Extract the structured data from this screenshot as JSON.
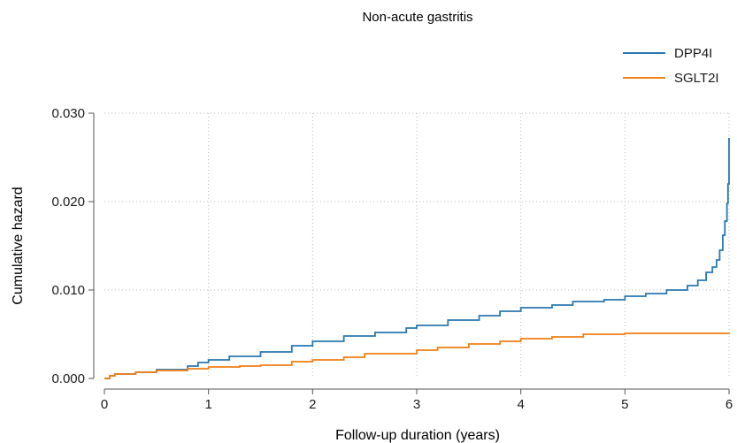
{
  "chart_data": {
    "type": "line",
    "title": "Non-acute gastritis",
    "xlabel": "Follow-up duration (years)",
    "ylabel": "Cumulative hazard",
    "xlim": [
      0,
      6
    ],
    "ylim": [
      0,
      0.03
    ],
    "x_ticks": [
      0,
      1,
      2,
      3,
      4,
      5,
      6
    ],
    "x_tick_labels": [
      "0",
      "1",
      "2",
      "3",
      "4",
      "5",
      "6"
    ],
    "y_ticks": [
      0,
      0.01,
      0.02,
      0.03
    ],
    "y_tick_labels": [
      "0.000",
      "0.010",
      "0.020",
      "0.030"
    ],
    "grid": true,
    "legend_position": "top-right",
    "series": [
      {
        "name": "DPP4I",
        "color": "#2a78b0",
        "x": [
          0,
          0.05,
          0.1,
          0.3,
          0.5,
          0.8,
          0.9,
          1.0,
          1.2,
          1.5,
          1.8,
          2.0,
          2.3,
          2.6,
          2.9,
          3.0,
          3.3,
          3.6,
          3.8,
          4.0,
          4.3,
          4.5,
          4.8,
          5.0,
          5.2,
          5.4,
          5.6,
          5.7,
          5.78,
          5.84,
          5.88,
          5.91,
          5.94,
          5.96,
          5.98,
          5.99,
          6.0
        ],
        "y": [
          0,
          0.0003,
          0.0005,
          0.0007,
          0.001,
          0.0014,
          0.0018,
          0.0021,
          0.0025,
          0.003,
          0.0037,
          0.0042,
          0.0048,
          0.0052,
          0.0057,
          0.006,
          0.0066,
          0.0071,
          0.0076,
          0.008,
          0.0083,
          0.0087,
          0.0089,
          0.0093,
          0.0096,
          0.01,
          0.0105,
          0.0111,
          0.012,
          0.0126,
          0.0134,
          0.0145,
          0.0162,
          0.0178,
          0.0198,
          0.022,
          0.0272
        ]
      },
      {
        "name": "SGLT2I",
        "color": "#f07f15",
        "x": [
          0,
          0.05,
          0.1,
          0.3,
          0.5,
          0.8,
          1.0,
          1.3,
          1.5,
          1.8,
          2.0,
          2.3,
          2.5,
          3.0,
          3.2,
          3.5,
          3.8,
          4.0,
          4.3,
          4.6,
          5.0,
          5.5,
          6.0
        ],
        "y": [
          0,
          0.0003,
          0.0005,
          0.0007,
          0.0009,
          0.0011,
          0.0013,
          0.0014,
          0.0015,
          0.0019,
          0.0021,
          0.0024,
          0.0028,
          0.0032,
          0.0035,
          0.0039,
          0.0042,
          0.0045,
          0.0047,
          0.005,
          0.0051,
          0.0051,
          0.0052
        ]
      }
    ]
  }
}
